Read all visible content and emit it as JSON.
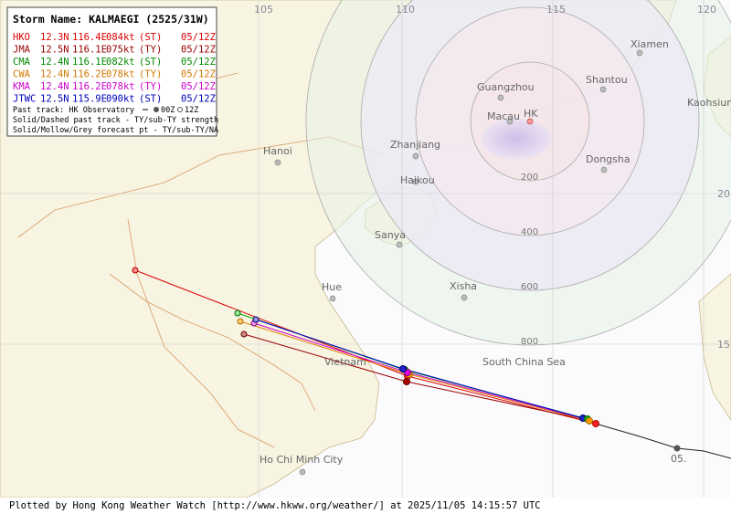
{
  "legend": {
    "title": "Storm Name: KALMAEGI (2525/31W)",
    "rows": [
      {
        "agency": "HKO",
        "lat": "12.3N",
        "lon": "116.4E",
        "speed": "084kt",
        "category": "(ST)",
        "time": "05/12Z"
      },
      {
        "agency": "JMA",
        "lat": "12.5N",
        "lon": "116.1E",
        "speed": "075kt",
        "category": "(TY)",
        "time": "05/12Z"
      },
      {
        "agency": "CMA",
        "lat": "12.4N",
        "lon": "116.1E",
        "speed": "082kt",
        "category": "(ST)",
        "time": "05/12Z"
      },
      {
        "agency": "CWA",
        "lat": "12.4N",
        "lon": "116.2E",
        "speed": "078kt",
        "category": "(TY)",
        "time": "05/12Z"
      },
      {
        "agency": "KMA",
        "lat": "12.4N",
        "lon": "116.2E",
        "speed": "078kt",
        "category": "(TY)",
        "time": "05/12Z"
      },
      {
        "agency": "JTWC",
        "lat": "12.5N",
        "lon": "115.9E",
        "speed": "090kt",
        "category": "(ST)",
        "time": "05/12Z"
      }
    ],
    "past_track_note": "Past track: HK Observatory",
    "past_track_00z": "00Z",
    "past_track_12z": "12Z",
    "notes": [
      "Solid/Dashed past track - TY/sub-TY strength",
      "Solid/Mollow/Grey forecast pt - TY/sub-TY/NA"
    ]
  },
  "map": {
    "longitudes": [
      "105",
      "110",
      "115",
      "120"
    ],
    "latitudes": [
      "20",
      "15"
    ],
    "rings": [
      "200",
      "400",
      "600",
      "800"
    ],
    "places": [
      "Guangzhou",
      "Macau",
      "HK",
      "Shantou",
      "Xiamen",
      "Kaohsiung",
      "Zhanjiang",
      "Haikou",
      "Sanya",
      "Hanoi",
      "Hue",
      "Xisha",
      "Dongsha",
      "South China Sea",
      "Vietnam",
      "Ho Chi Minh City"
    ],
    "date_marker": "05."
  },
  "footer": "Plotted by Hong Kong Weather Watch [http://www.hkww.org/weather/] at 2025/11/05 14:15:57 UTC"
}
